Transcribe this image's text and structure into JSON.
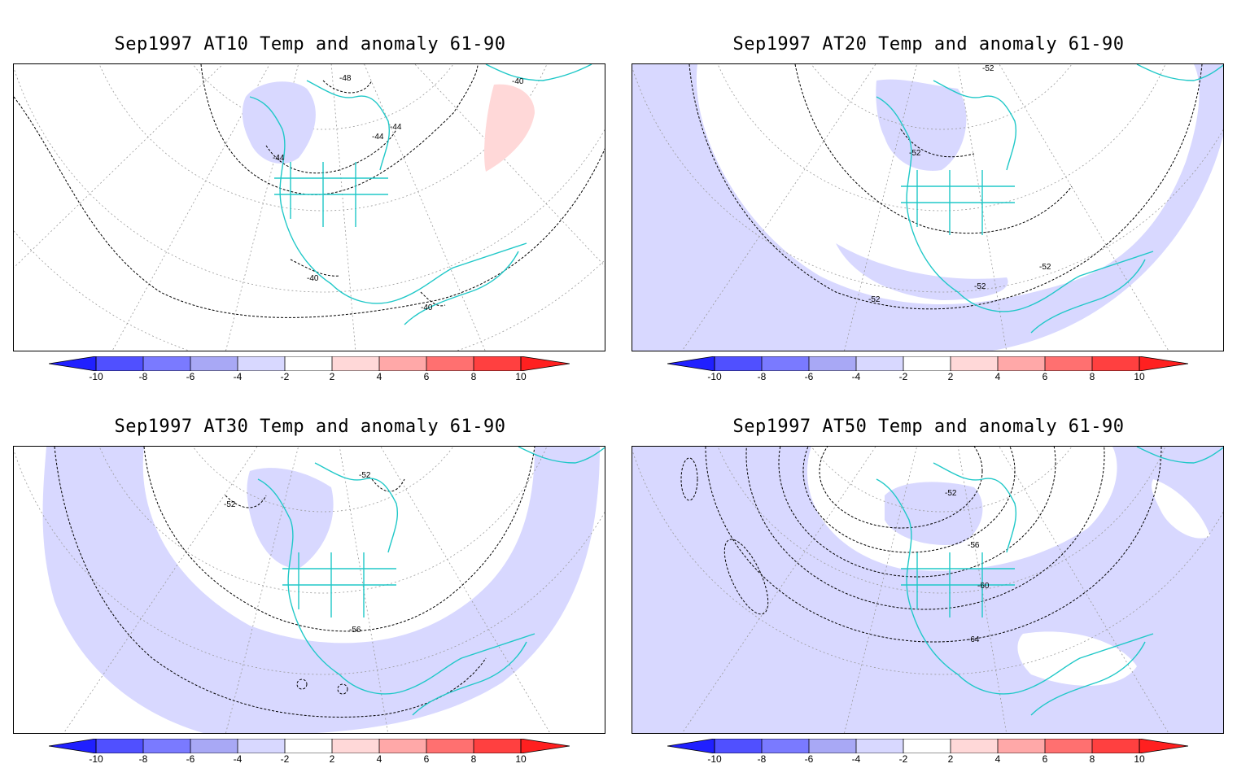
{
  "figure": {
    "panels": [
      {
        "title": "Sep1997 AT10 Temp and anomaly 61-90",
        "contour_labels": [
          "-48",
          "-44",
          "-44",
          "-44",
          "-40",
          "-40",
          "-40"
        ]
      },
      {
        "title": "Sep1997 AT20 Temp and anomaly 61-90",
        "contour_labels": [
          "-52",
          "-52",
          "-52",
          "-52",
          "-52"
        ]
      },
      {
        "title": "Sep1997 AT30 Temp and anomaly 61-90",
        "contour_labels": [
          "-52",
          "-52",
          "-56"
        ]
      },
      {
        "title": "Sep1997 AT50 Temp and anomaly 61-90",
        "contour_labels": [
          "-52",
          "-56",
          "-60",
          "-64"
        ]
      }
    ],
    "colorbar": {
      "ticks": [
        "-10",
        "-8",
        "-6",
        "-4",
        "-2",
        "2",
        "4",
        "6",
        "8",
        "10"
      ],
      "colors": [
        "#2020ff",
        "#5050ff",
        "#7a7aff",
        "#a8a8f5",
        "#d8d8ff",
        "#ffffff",
        "#ffd8d8",
        "#ffa8a8",
        "#ff7070",
        "#ff4040",
        "#ff2020"
      ]
    },
    "colors": {
      "coastline": "#20c8c8",
      "cold_anomaly": "#d8d8ff",
      "warm_anomaly": "#ffd8d8"
    }
  }
}
